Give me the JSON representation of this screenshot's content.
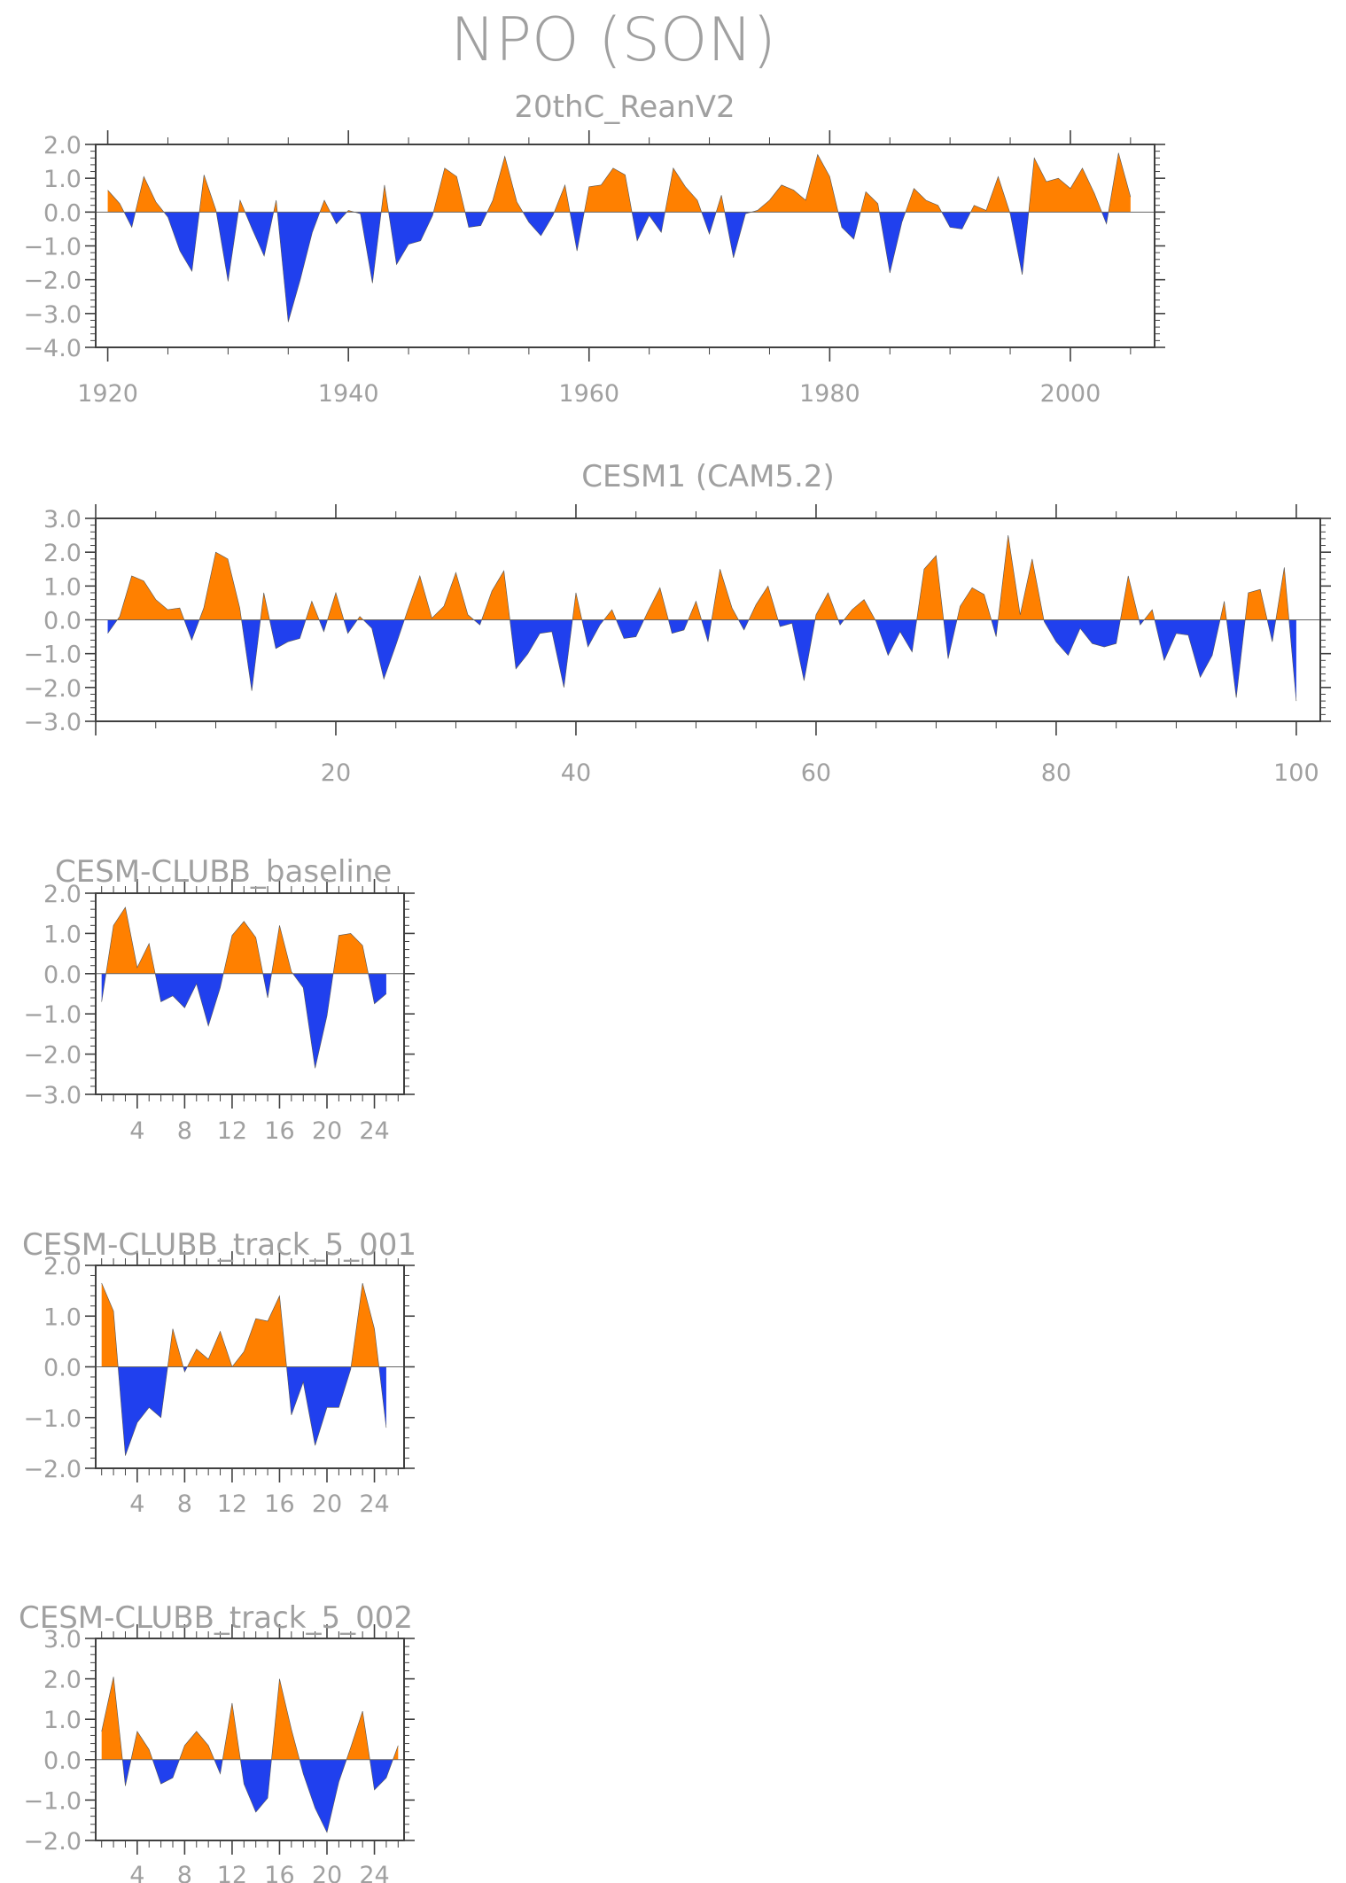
{
  "figure": {
    "title": "NPO (SON)",
    "colors": {
      "positive": "#ff8000",
      "negative": "#2040ee",
      "axis": "#404040",
      "text": "#a0a0a0"
    }
  },
  "chart_data": [
    {
      "type": "area",
      "title": "20thC_ReanV2",
      "xlabel": "",
      "ylabel": "",
      "x_start": 1920,
      "xlim": [
        1919,
        2007
      ],
      "ylim": [
        -4.0,
        2.0
      ],
      "xticks": [
        1920,
        1940,
        1960,
        1980,
        2000
      ],
      "yticks": [
        "2.0",
        "1.0",
        "0.0",
        "-1.0",
        "-2.0",
        "-3.0",
        "-4.0"
      ],
      "values": [
        0.65,
        0.25,
        -0.45,
        1.05,
        0.3,
        -0.15,
        -1.15,
        -1.75,
        1.1,
        0.05,
        -2.05,
        0.35,
        -0.5,
        -1.3,
        0.35,
        -3.25,
        -2.0,
        -0.6,
        0.35,
        -0.35,
        0.05,
        -0.05,
        -2.1,
        0.8,
        -1.55,
        -0.95,
        -0.85,
        -0.1,
        1.3,
        1.05,
        -0.45,
        -0.4,
        0.35,
        1.65,
        0.3,
        -0.3,
        -0.7,
        -0.1,
        0.8,
        -1.15,
        0.75,
        0.8,
        1.3,
        1.1,
        -0.85,
        -0.1,
        -0.6,
        1.3,
        0.75,
        0.35,
        -0.65,
        0.5,
        -1.35,
        -0.05,
        0.05,
        0.35,
        0.8,
        0.65,
        0.35,
        1.7,
        1.05,
        -0.45,
        -0.8,
        0.6,
        0.25,
        -1.8,
        -0.3,
        0.7,
        0.35,
        0.2,
        -0.45,
        -0.5,
        0.2,
        0.05,
        1.05,
        -0.05,
        -1.85,
        1.6,
        0.9,
        1.0,
        0.7,
        1.3,
        0.55,
        -0.35,
        1.75,
        0.45
      ]
    },
    {
      "type": "area",
      "title": "CESM1 (CAM5.2)",
      "xlabel": "",
      "ylabel": "",
      "x_start": 1,
      "xlim": [
        0,
        102
      ],
      "ylim": [
        -3.0,
        3.0
      ],
      "xticks": [
        20,
        40,
        60,
        80,
        100
      ],
      "yticks": [
        "3.0",
        "2.0",
        "1.0",
        "0.0",
        "-1.0",
        "-2.0",
        "-3.0"
      ],
      "values": [
        -0.4,
        0.1,
        1.3,
        1.15,
        0.6,
        0.3,
        0.35,
        -0.6,
        0.35,
        2.0,
        1.8,
        0.35,
        -2.1,
        0.8,
        -0.85,
        -0.65,
        -0.55,
        0.55,
        -0.35,
        0.8,
        -0.4,
        0.1,
        -0.25,
        -1.75,
        -0.75,
        0.3,
        1.3,
        0.05,
        0.4,
        1.4,
        0.15,
        -0.15,
        0.85,
        1.45,
        -1.45,
        -1.0,
        -0.4,
        -0.35,
        -2.0,
        0.8,
        -0.8,
        -0.15,
        0.3,
        -0.55,
        -0.5,
        0.25,
        0.95,
        -0.4,
        -0.3,
        0.55,
        -0.65,
        1.5,
        0.35,
        -0.3,
        0.45,
        1.0,
        -0.2,
        -0.1,
        -1.8,
        0.15,
        0.8,
        -0.15,
        0.3,
        0.6,
        -0.05,
        -1.05,
        -0.35,
        -0.95,
        1.5,
        1.9,
        -1.15,
        0.4,
        0.95,
        0.75,
        -0.5,
        2.5,
        0.15,
        1.8,
        -0.05,
        -0.65,
        -1.05,
        -0.25,
        -0.7,
        -0.8,
        -0.7,
        1.3,
        -0.15,
        0.3,
        -1.2,
        -0.4,
        -0.45,
        -1.7,
        -1.05,
        0.55,
        -2.3,
        0.8,
        0.9,
        -0.65,
        1.55,
        -2.4
      ]
    },
    {
      "type": "area",
      "title": "CESM-CLUBB_baseline",
      "xlabel": "",
      "ylabel": "",
      "x_start": 1,
      "xlim": [
        0.5,
        26.5
      ],
      "ylim": [
        -3.0,
        2.0
      ],
      "xticks": [
        4,
        8,
        12,
        16,
        20,
        24
      ],
      "yticks": [
        "2.0",
        "1.0",
        "0.0",
        "-1.0",
        "-2.0",
        "-3.0"
      ],
      "values": [
        -0.7,
        1.2,
        1.65,
        0.15,
        0.75,
        -0.7,
        -0.55,
        -0.85,
        -0.25,
        -1.3,
        -0.35,
        0.95,
        1.3,
        0.9,
        -0.6,
        1.2,
        0.05,
        -0.35,
        -2.35,
        -1.05,
        0.95,
        1.0,
        0.7,
        -0.75,
        -0.5
      ]
    },
    {
      "type": "area",
      "title": "CESM-CLUBB_track_5_001",
      "xlabel": "",
      "ylabel": "",
      "x_start": 1,
      "xlim": [
        0.5,
        26.5
      ],
      "ylim": [
        -2.0,
        2.0
      ],
      "xticks": [
        4,
        8,
        12,
        16,
        20,
        24
      ],
      "yticks": [
        "2.0",
        "1.0",
        "0.0",
        "-1.0",
        "-2.0"
      ],
      "values": [
        1.65,
        1.1,
        -1.75,
        -1.1,
        -0.8,
        -1.0,
        0.75,
        -0.1,
        0.35,
        0.15,
        0.7,
        0.0,
        0.3,
        0.95,
        0.9,
        1.4,
        -0.95,
        -0.3,
        -1.55,
        -0.8,
        -0.8,
        -0.05,
        1.65,
        0.75,
        -1.2
      ]
    },
    {
      "type": "area",
      "title": "CESM-CLUBB_track_5_002",
      "xlabel": "",
      "ylabel": "",
      "x_start": 1,
      "xlim": [
        0.5,
        26.5
      ],
      "ylim": [
        -2.0,
        3.0
      ],
      "xticks": [
        4,
        8,
        12,
        16,
        20,
        24
      ],
      "yticks": [
        "3.0",
        "2.0",
        "1.0",
        "0.0",
        "-1.0",
        "-2.0"
      ],
      "values": [
        0.7,
        2.05,
        -0.65,
        0.7,
        0.25,
        -0.6,
        -0.45,
        0.35,
        0.7,
        0.35,
        -0.35,
        1.4,
        -0.6,
        -1.3,
        -0.95,
        2.0,
        0.75,
        -0.35,
        -1.2,
        -1.8,
        -0.55,
        0.3,
        1.2,
        -0.75,
        -0.45,
        0.35
      ]
    }
  ]
}
